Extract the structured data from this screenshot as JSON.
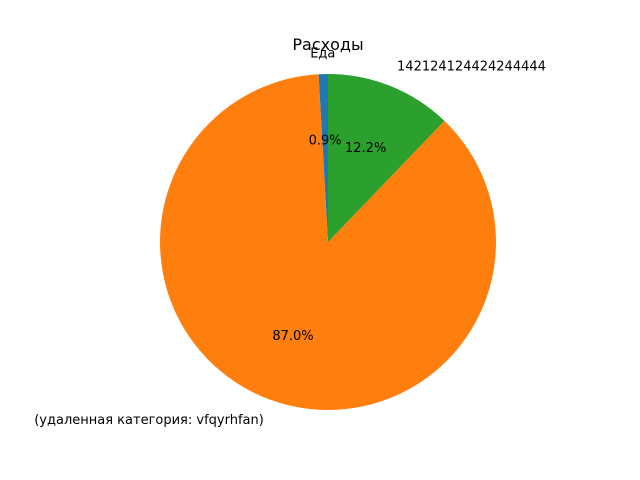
{
  "chart_data": {
    "type": "pie",
    "title": "Расходы",
    "categories": [
      "Еда",
      "(удаленная категория: vfqyrhfan)",
      "142124124424244444"
    ],
    "values": [
      0.9,
      87.0,
      12.2
    ],
    "percent_labels": [
      "0.9%",
      "87.0%",
      "12.2%"
    ],
    "colors": [
      "#1f77b4",
      "#ff7f0e",
      "#2ca02c"
    ],
    "start_angle_deg": 90,
    "direction": "counterclockwise",
    "legend": "none"
  }
}
